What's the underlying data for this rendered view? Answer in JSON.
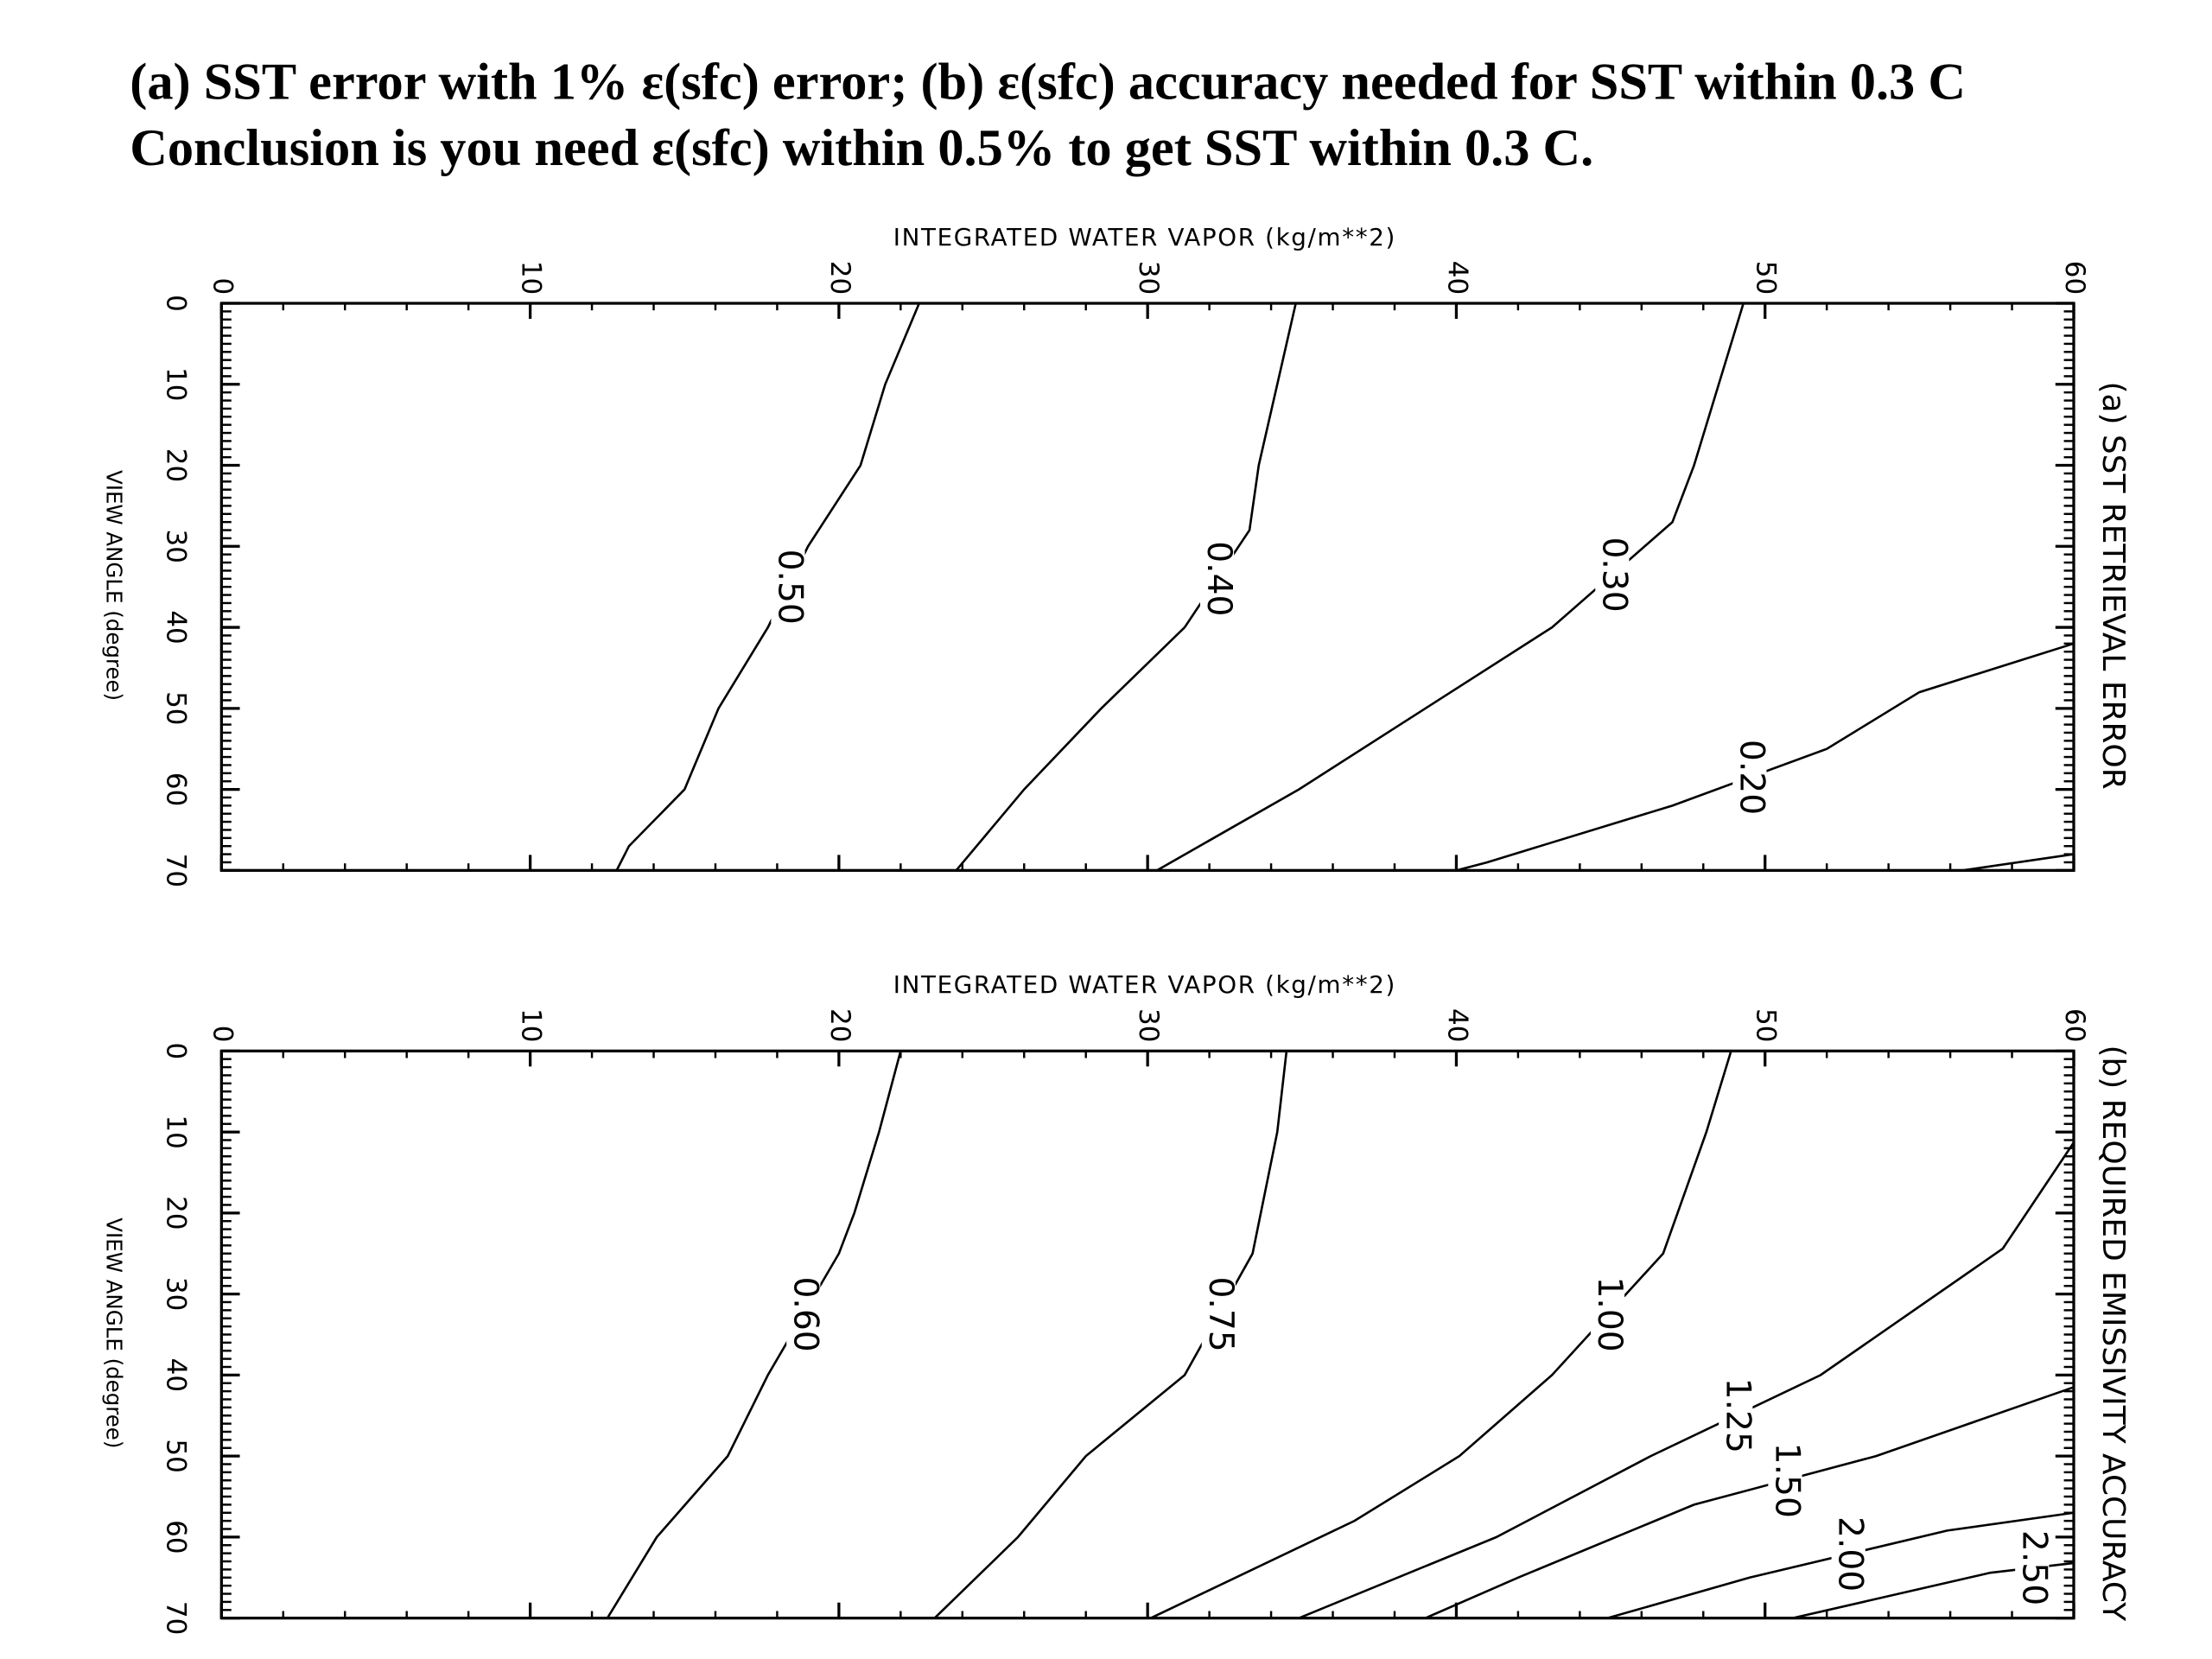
{
  "header": {
    "line1": "(a) SST error with 1% ε(sfc) error; (b) ε(sfc) accuracy needed for SST within 0.3 C",
    "line2": "Conclusion is you need ε(sfc) within 0.5% to get SST within 0.3 C."
  },
  "chart_data": [
    {
      "type": "contour",
      "title": "(a) SST RETRIEVAL ERROR",
      "xlabel": "INTEGRATED WATER VAPOR (kg/m**2)",
      "ylabel": "VIEW ANGLE (degree)",
      "xlim": [
        0,
        60
      ],
      "ylim": [
        0,
        70
      ],
      "xticks": [
        0,
        10,
        20,
        30,
        40,
        50,
        60
      ],
      "yticks": [
        0,
        10,
        20,
        30,
        40,
        50,
        60,
        70
      ],
      "color": "#000000",
      "series": [
        {
          "label": "0.50",
          "x": [
            22.6,
            21.5,
            20.7,
            19.0,
            17.7,
            16.1,
            15.0,
            13.2,
            12.8
          ],
          "y": [
            0,
            10,
            20,
            30,
            40,
            50,
            60,
            67,
            70
          ]
        },
        {
          "label": "0.40",
          "x": [
            34.8,
            34.2,
            33.6,
            33.3,
            31.2,
            28.5,
            26.0,
            23.8
          ],
          "y": [
            0,
            10,
            20,
            28,
            40,
            50,
            60,
            70
          ]
        },
        {
          "label": "0.30",
          "x": [
            49.3,
            48.5,
            47.7,
            47.0,
            43.1,
            39.0,
            34.9,
            30.3
          ],
          "y": [
            0,
            10,
            20,
            27,
            40,
            50,
            60,
            70
          ]
        },
        {
          "label": "0.20",
          "x": [
            60,
            55,
            52,
            47,
            41,
            40
          ],
          "y": [
            42,
            48,
            55,
            62,
            69,
            70
          ]
        },
        {
          "label": null,
          "x": [
            56.4,
            60
          ],
          "y": [
            70,
            68
          ]
        }
      ]
    },
    {
      "type": "contour",
      "title": "(b) REQUIRED EMISSIVITY ACCURACY",
      "xlabel": "INTEGRATED WATER VAPOR (kg/m**2)",
      "ylabel": "VIEW ANGLE (degree)",
      "xlim": [
        0,
        60
      ],
      "ylim": [
        0,
        70
      ],
      "xticks": [
        0,
        10,
        20,
        30,
        40,
        50,
        60
      ],
      "yticks": [
        0,
        10,
        20,
        30,
        40,
        50,
        60,
        70
      ],
      "color": "#000000",
      "series": [
        {
          "label": "0.60",
          "x": [
            22.0,
            21.3,
            20.5,
            20.0,
            17.7,
            16.4,
            14.1,
            12.5
          ],
          "y": [
            0,
            10,
            20,
            25,
            40,
            50,
            60,
            70
          ]
        },
        {
          "label": "0.75",
          "x": [
            34.5,
            34.2,
            33.4,
            31.2,
            28.0,
            25.8,
            23.1
          ],
          "y": [
            0,
            10,
            25,
            40,
            50,
            60,
            70
          ]
        },
        {
          "label": "1.00",
          "x": [
            48.9,
            48.1,
            46.7,
            43.1,
            40.1,
            36.7,
            30.1
          ],
          "y": [
            0,
            10,
            25,
            40,
            50,
            58,
            70
          ]
        },
        {
          "label": "1.25",
          "x": [
            60,
            57.7,
            51.8,
            46.3,
            41.3,
            34.9
          ],
          "y": [
            11.3,
            24.4,
            40,
            50,
            60,
            70
          ]
        },
        {
          "label": "1.50",
          "x": [
            60,
            53.6,
            47.7,
            42.0,
            39.0
          ],
          "y": [
            41.5,
            50,
            56,
            65,
            70
          ]
        },
        {
          "label": "2.00",
          "x": [
            60,
            55.9,
            49.5,
            44.9
          ],
          "y": [
            57,
            59.2,
            65,
            70
          ]
        },
        {
          "label": "2.50",
          "x": [
            60,
            57.3,
            50.9
          ],
          "y": [
            63.2,
            64.4,
            70
          ]
        }
      ]
    }
  ]
}
